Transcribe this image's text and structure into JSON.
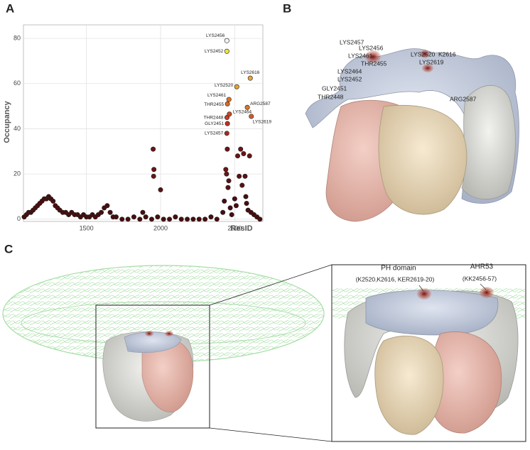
{
  "panel_labels": [
    "A",
    "B",
    "C"
  ],
  "chart_data": {
    "type": "scatter",
    "xlabel": "ResID",
    "ylabel": "Occupancy",
    "xlim": [
      1075,
      2690
    ],
    "ylim": [
      -1,
      86
    ],
    "xticks": [
      1500,
      2000,
      2500
    ],
    "yticks": [
      0,
      20,
      40,
      60,
      80
    ],
    "grid": true,
    "x": [
      2447,
      2447,
      2514,
      2605,
      2461,
      2451,
      2464,
      2448,
      2451,
      2447,
      2585,
      2612,
      1080,
      1095,
      1110,
      1125,
      1140,
      1155,
      1170,
      1185,
      1200,
      1215,
      1230,
      1245,
      1260,
      1275,
      1290,
      1305,
      1320,
      1340,
      1360,
      1380,
      1400,
      1420,
      1440,
      1460,
      1480,
      1500,
      1520,
      1540,
      1560,
      1580,
      1600,
      1620,
      1640,
      1660,
      1680,
      1700,
      1740,
      1780,
      1820,
      1860,
      1880,
      1900,
      1940,
      1950,
      1955,
      1953,
      2000,
      1980,
      2020,
      2060,
      2100,
      2140,
      2180,
      2220,
      2260,
      2300,
      2340,
      2380,
      2420,
      2440,
      2445,
      2450,
      2455,
      2460,
      2430,
      2470,
      2480,
      2500,
      2510,
      2520,
      2530,
      2540,
      2550,
      2560,
      2570,
      2575,
      2580,
      2590,
      2600,
      2610,
      2630,
      2650,
      2670
    ],
    "values": [
      79,
      74.3,
      58.6,
      62.4,
      53,
      51,
      46.5,
      45,
      42.3,
      38,
      49.5,
      45.5,
      1,
      2,
      3,
      3,
      4,
      5,
      6,
      7,
      8,
      9,
      9,
      10,
      9,
      8,
      6,
      5,
      4,
      3,
      3,
      2,
      3,
      2,
      2,
      1,
      2,
      1,
      1,
      2,
      1,
      2,
      3,
      5,
      6,
      3,
      1,
      1,
      0,
      0,
      1,
      0,
      3,
      1,
      0,
      31,
      22,
      19,
      13,
      1,
      0,
      0,
      1,
      0,
      0,
      0,
      0,
      0,
      1,
      0,
      3,
      22,
      20,
      31,
      14,
      17,
      8,
      5,
      2,
      9,
      6,
      28,
      19,
      31,
      15,
      29,
      19,
      10,
      7,
      4,
      28,
      3,
      2,
      1,
      0
    ],
    "point_labels": [
      "LYS2456",
      "LYS2452",
      "LYS2520",
      "LYS2616",
      "LYS2461",
      "THR2455",
      "LYS2464",
      "THR2448",
      "GLY2451",
      "LYS2457",
      "ARG2587",
      "LYS2619",
      null,
      null,
      null,
      null,
      null,
      null,
      null,
      null,
      null,
      null,
      null,
      null,
      null,
      null,
      null,
      null,
      null,
      null,
      null,
      null,
      null,
      null,
      null,
      null,
      null,
      null,
      null,
      null,
      null,
      null,
      null,
      null,
      null,
      null,
      null,
      null,
      null,
      null,
      null,
      null,
      null,
      null,
      null,
      null,
      null,
      null,
      null,
      null,
      null,
      null,
      null,
      null,
      null,
      null,
      null,
      null,
      null,
      null,
      null,
      null,
      null,
      null,
      null,
      null,
      null,
      null,
      null,
      null,
      null,
      null,
      null,
      null,
      null,
      null,
      null,
      null,
      null,
      null,
      null,
      null,
      null,
      null,
      null
    ],
    "colors": [
      "#f4f4f4",
      "#f1e23c",
      "#e9a030",
      "#eaa232",
      "#d9762b",
      "#d46a29",
      "#c94a25",
      "#c4402a",
      "#b83224",
      "#a52a22",
      "#d9762b",
      "#d45a28",
      "#4a0d0d",
      "#4a0d0d",
      "#4a0d0d",
      "#4a0d0d",
      "#4a0d0d",
      "#4a0d0d",
      "#4a0d0d",
      "#4a0d0d",
      "#4a0d0d",
      "#4a0d0d",
      "#4a0d0d",
      "#4a0d0d",
      "#4a0d0d",
      "#4a0d0d",
      "#4a0d0d",
      "#4a0d0d",
      "#4a0d0d",
      "#4a0d0d",
      "#4a0d0d",
      "#4a0d0d",
      "#4a0d0d",
      "#4a0d0d",
      "#4a0d0d",
      "#4a0d0d",
      "#4a0d0d",
      "#4a0d0d",
      "#4a0d0d",
      "#4a0d0d",
      "#4a0d0d",
      "#4a0d0d",
      "#4a0d0d",
      "#4a0d0d",
      "#4a0d0d",
      "#4a0d0d",
      "#4a0d0d",
      "#4a0d0d",
      "#4a0d0d",
      "#4a0d0d",
      "#4a0d0d",
      "#4a0d0d",
      "#4a0d0d",
      "#4a0d0d",
      "#4a0d0d",
      "#6a1515",
      "#6a1515",
      "#6a1515",
      "#5a1111",
      "#4a0d0d",
      "#4a0d0d",
      "#4a0d0d",
      "#4a0d0d",
      "#4a0d0d",
      "#4a0d0d",
      "#4a0d0d",
      "#4a0d0d",
      "#4a0d0d",
      "#4a0d0d",
      "#4a0d0d",
      "#4a0d0d",
      "#6a1515",
      "#6a1515",
      "#6a1515",
      "#5a1111",
      "#5a1111",
      "#4a0d0d",
      "#4a0d0d",
      "#4a0d0d",
      "#4a0d0d",
      "#4a0d0d",
      "#6a1515",
      "#5a1111",
      "#6a1515",
      "#5a1111",
      "#6a1515",
      "#5a1111",
      "#4a0d0d",
      "#4a0d0d",
      "#4a0d0d",
      "#6a1515",
      "#4a0d0d",
      "#4a0d0d",
      "#4a0d0d",
      "#4a0d0d"
    ]
  },
  "structure_labels": [
    "LYS2457",
    "LYS2456",
    "LYS2461",
    "THR2455",
    "LYS2464",
    "LYS2452",
    "GLY2451",
    "THR2448",
    "LYS2520",
    "K2616",
    "LYS2619",
    "ARG2587"
  ],
  "zoom_annotations": [
    {
      "title": "PH domain",
      "detail": "(K2520,K2616, KER2619-20)"
    },
    {
      "title": "AHR53",
      "detail": "(KK2456-57)"
    }
  ]
}
